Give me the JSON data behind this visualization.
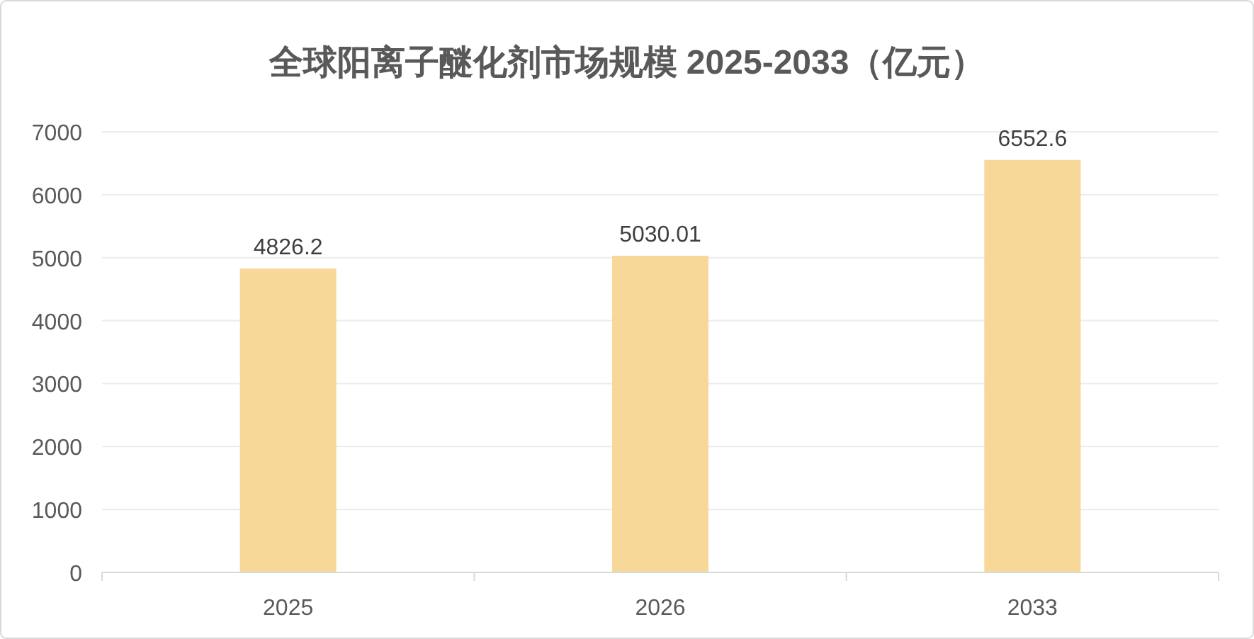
{
  "chart_data": {
    "type": "bar",
    "title": "全球阳离子醚化剂市场规模 2025-2033（亿元）",
    "categories": [
      "2025",
      "2026",
      "2033"
    ],
    "values": [
      4826.2,
      5030.01,
      6552.6
    ],
    "color": "#f8d899",
    "ylim": [
      0,
      7000
    ],
    "yticks": [
      0,
      1000,
      2000,
      3000,
      4000,
      5000,
      6000,
      7000
    ],
    "grid": "y",
    "data_labels": true
  }
}
